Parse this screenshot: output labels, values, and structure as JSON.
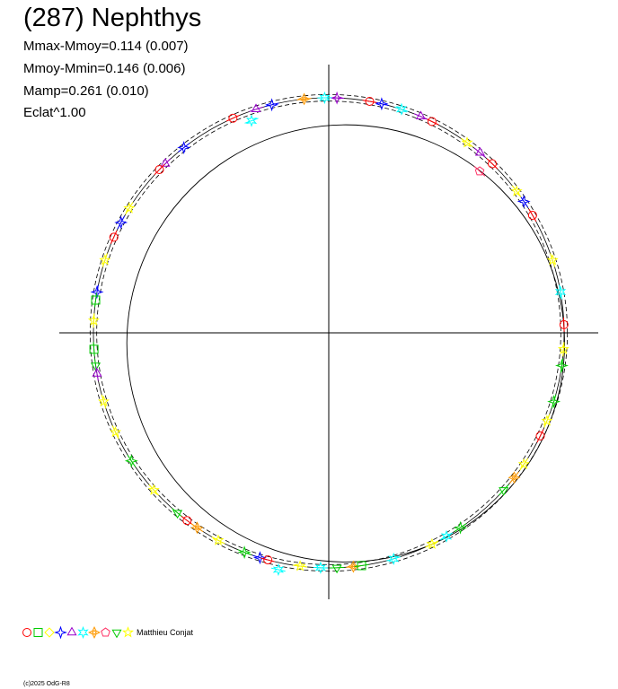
{
  "title": "(287) Nephthys",
  "stats": {
    "line1": "Mmax-Mmoy=0.114 (0.007)",
    "line2": "Mmoy-Mmin=0.146 (0.006)",
    "line3": "Mamp=0.261 (0.010)",
    "line4": "Eclat^1.00"
  },
  "author": "Matthieu Conjat",
  "copyright": "(c)2025 OdG-R8",
  "colors": {
    "axes": "#000000",
    "curve": "#000000"
  },
  "legend_symbols": [
    {
      "shape": "circle",
      "color": "#ff0000"
    },
    {
      "shape": "square",
      "color": "#00cc00"
    },
    {
      "shape": "diamond",
      "color": "#ffff00"
    },
    {
      "shape": "star4",
      "color": "#0000ff"
    },
    {
      "shape": "triangle-up",
      "color": "#9900cc"
    },
    {
      "shape": "star6",
      "color": "#00ffff"
    },
    {
      "shape": "diamond-star",
      "color": "#ff9900"
    },
    {
      "shape": "pentagon",
      "color": "#ff3366"
    },
    {
      "shape": "triangle-down",
      "color": "#00cc00"
    },
    {
      "shape": "star5",
      "color": "#ffff00"
    }
  ],
  "chart_data": {
    "type": "scatter",
    "subtype": "polar-lightcurve",
    "title": "(287) Nephthys",
    "axes": {
      "xlim": [
        -1.13,
        1.13
      ],
      "ylim": [
        -1.13,
        1.13
      ],
      "grid": false
    },
    "reference_circles": [
      1.0,
      0.986,
      1.014
    ],
    "model_curve": {
      "center": [
        0.072,
        -0.045
      ],
      "radius": 0.93
    },
    "points": [
      {
        "angle": 2,
        "r": 1.0,
        "shape": "circle",
        "color": "#ff0000"
      },
      {
        "angle": 10,
        "r": 1.0,
        "shape": "star6",
        "color": "#00ffff"
      },
      {
        "angle": 18,
        "r": 1.0,
        "shape": "star5",
        "color": "#ffff00"
      },
      {
        "angle": 30,
        "r": 1.0,
        "shape": "circle",
        "color": "#ff0000"
      },
      {
        "angle": 34,
        "r": 1.0,
        "shape": "star4",
        "color": "#0000ff"
      },
      {
        "angle": 37,
        "r": 1.0,
        "shape": "star5",
        "color": "#ffff00"
      },
      {
        "angle": 46,
        "r": 1.0,
        "shape": "circle",
        "color": "#ff0000"
      },
      {
        "angle": 47,
        "r": 0.94,
        "shape": "pentagon",
        "color": "#ff3366"
      },
      {
        "angle": 50,
        "r": 1.0,
        "shape": "triangle-up",
        "color": "#9900cc"
      },
      {
        "angle": 54,
        "r": 1.0,
        "shape": "star5",
        "color": "#ffff00"
      },
      {
        "angle": 64,
        "r": 1.0,
        "shape": "circle",
        "color": "#ff0000"
      },
      {
        "angle": 67,
        "r": 1.0,
        "shape": "triangle-up",
        "color": "#9900cc"
      },
      {
        "angle": 72,
        "r": 1.0,
        "shape": "star6",
        "color": "#00ffff"
      },
      {
        "angle": 77,
        "r": 1.0,
        "shape": "star4",
        "color": "#0000ff"
      },
      {
        "angle": 80,
        "r": 1.0,
        "shape": "circle",
        "color": "#ff0000"
      },
      {
        "angle": 88,
        "r": 1.0,
        "shape": "star4",
        "color": "#9900cc"
      },
      {
        "angle": 91,
        "r": 1.0,
        "shape": "star6",
        "color": "#00ffff"
      },
      {
        "angle": 96,
        "r": 1.0,
        "shape": "diamond-star",
        "color": "#ff9900"
      },
      {
        "angle": 104,
        "r": 1.0,
        "shape": "star4",
        "color": "#0000ff"
      },
      {
        "angle": 108,
        "r": 1.0,
        "shape": "triangle-up",
        "color": "#9900cc"
      },
      {
        "angle": 110,
        "r": 0.96,
        "shape": "star6",
        "color": "#00ffff"
      },
      {
        "angle": 114,
        "r": 1.0,
        "shape": "circle",
        "color": "#ff0000"
      },
      {
        "angle": 128,
        "r": 1.0,
        "shape": "star4",
        "color": "#0000ff"
      },
      {
        "angle": 134,
        "r": 1.0,
        "shape": "triangle-up",
        "color": "#9900cc"
      },
      {
        "angle": 136,
        "r": 1.0,
        "shape": "circle",
        "color": "#ff0000"
      },
      {
        "angle": 148,
        "r": 1.0,
        "shape": "star5",
        "color": "#ffff00"
      },
      {
        "angle": 152,
        "r": 1.0,
        "shape": "star4",
        "color": "#0000ff"
      },
      {
        "angle": 156,
        "r": 1.0,
        "shape": "circle",
        "color": "#ff0000"
      },
      {
        "angle": 162,
        "r": 1.0,
        "shape": "star5",
        "color": "#ffff00"
      },
      {
        "angle": 170,
        "r": 1.0,
        "shape": "star4",
        "color": "#0000ff"
      },
      {
        "angle": 172,
        "r": 1.0,
        "shape": "square",
        "color": "#00cc00"
      },
      {
        "angle": 177,
        "r": 1.0,
        "shape": "star5",
        "color": "#ffff00"
      },
      {
        "angle": 184,
        "r": 1.0,
        "shape": "square",
        "color": "#00cc00"
      },
      {
        "angle": 188,
        "r": 1.0,
        "shape": "triangle-down",
        "color": "#00cc00"
      },
      {
        "angle": 190,
        "r": 1.0,
        "shape": "triangle-up",
        "color": "#9900cc"
      },
      {
        "angle": 197,
        "r": 1.0,
        "shape": "star5",
        "color": "#ffff00"
      },
      {
        "angle": 205,
        "r": 1.0,
        "shape": "star5",
        "color": "#ffff00"
      },
      {
        "angle": 213,
        "r": 1.0,
        "shape": "star4",
        "color": "#00cc00"
      },
      {
        "angle": 222,
        "r": 1.0,
        "shape": "star5",
        "color": "#ffff00"
      },
      {
        "angle": 230,
        "r": 1.0,
        "shape": "triangle-down",
        "color": "#00cc00"
      },
      {
        "angle": 233,
        "r": 1.0,
        "shape": "circle",
        "color": "#ff0000"
      },
      {
        "angle": 236,
        "r": 1.0,
        "shape": "diamond-star",
        "color": "#ff9900"
      },
      {
        "angle": 242,
        "r": 1.0,
        "shape": "star5",
        "color": "#ffff00"
      },
      {
        "angle": 249,
        "r": 1.0,
        "shape": "star4",
        "color": "#00cc00"
      },
      {
        "angle": 253,
        "r": 1.0,
        "shape": "star4",
        "color": "#0000ff"
      },
      {
        "angle": 255,
        "r": 1.0,
        "shape": "circle",
        "color": "#ff0000"
      },
      {
        "angle": 258,
        "r": 1.03,
        "shape": "star6",
        "color": "#00ffff"
      },
      {
        "angle": 263,
        "r": 1.0,
        "shape": "star5",
        "color": "#ffff00"
      },
      {
        "angle": 268,
        "r": 1.0,
        "shape": "star6",
        "color": "#00ffff"
      },
      {
        "angle": 272,
        "r": 1.0,
        "shape": "triangle-down",
        "color": "#00cc00"
      },
      {
        "angle": 276,
        "r": 1.0,
        "shape": "diamond-star",
        "color": "#ff9900"
      },
      {
        "angle": 278,
        "r": 1.0,
        "shape": "square",
        "color": "#00cc00"
      },
      {
        "angle": 286,
        "r": 1.0,
        "shape": "star6",
        "color": "#00ffff"
      },
      {
        "angle": 296,
        "r": 1.0,
        "shape": "star5",
        "color": "#ffff00"
      },
      {
        "angle": 300,
        "r": 1.0,
        "shape": "star6",
        "color": "#00ffff"
      },
      {
        "angle": 304,
        "r": 1.0,
        "shape": "star4",
        "color": "#00cc00"
      },
      {
        "angle": 318,
        "r": 1.0,
        "shape": "triangle-down",
        "color": "#00cc00"
      },
      {
        "angle": 322,
        "r": 1.0,
        "shape": "diamond-star",
        "color": "#ff9900"
      },
      {
        "angle": 326,
        "r": 1.0,
        "shape": "star5",
        "color": "#ffff00"
      },
      {
        "angle": 334,
        "r": 1.0,
        "shape": "circle",
        "color": "#ff0000"
      },
      {
        "angle": 338,
        "r": 1.0,
        "shape": "star5",
        "color": "#ffff00"
      },
      {
        "angle": 343,
        "r": 1.0,
        "shape": "star4",
        "color": "#00cc00"
      },
      {
        "angle": 352,
        "r": 1.0,
        "shape": "star4",
        "color": "#00cc00"
      },
      {
        "angle": 356,
        "r": 1.0,
        "shape": "star5",
        "color": "#ffff00"
      }
    ]
  }
}
